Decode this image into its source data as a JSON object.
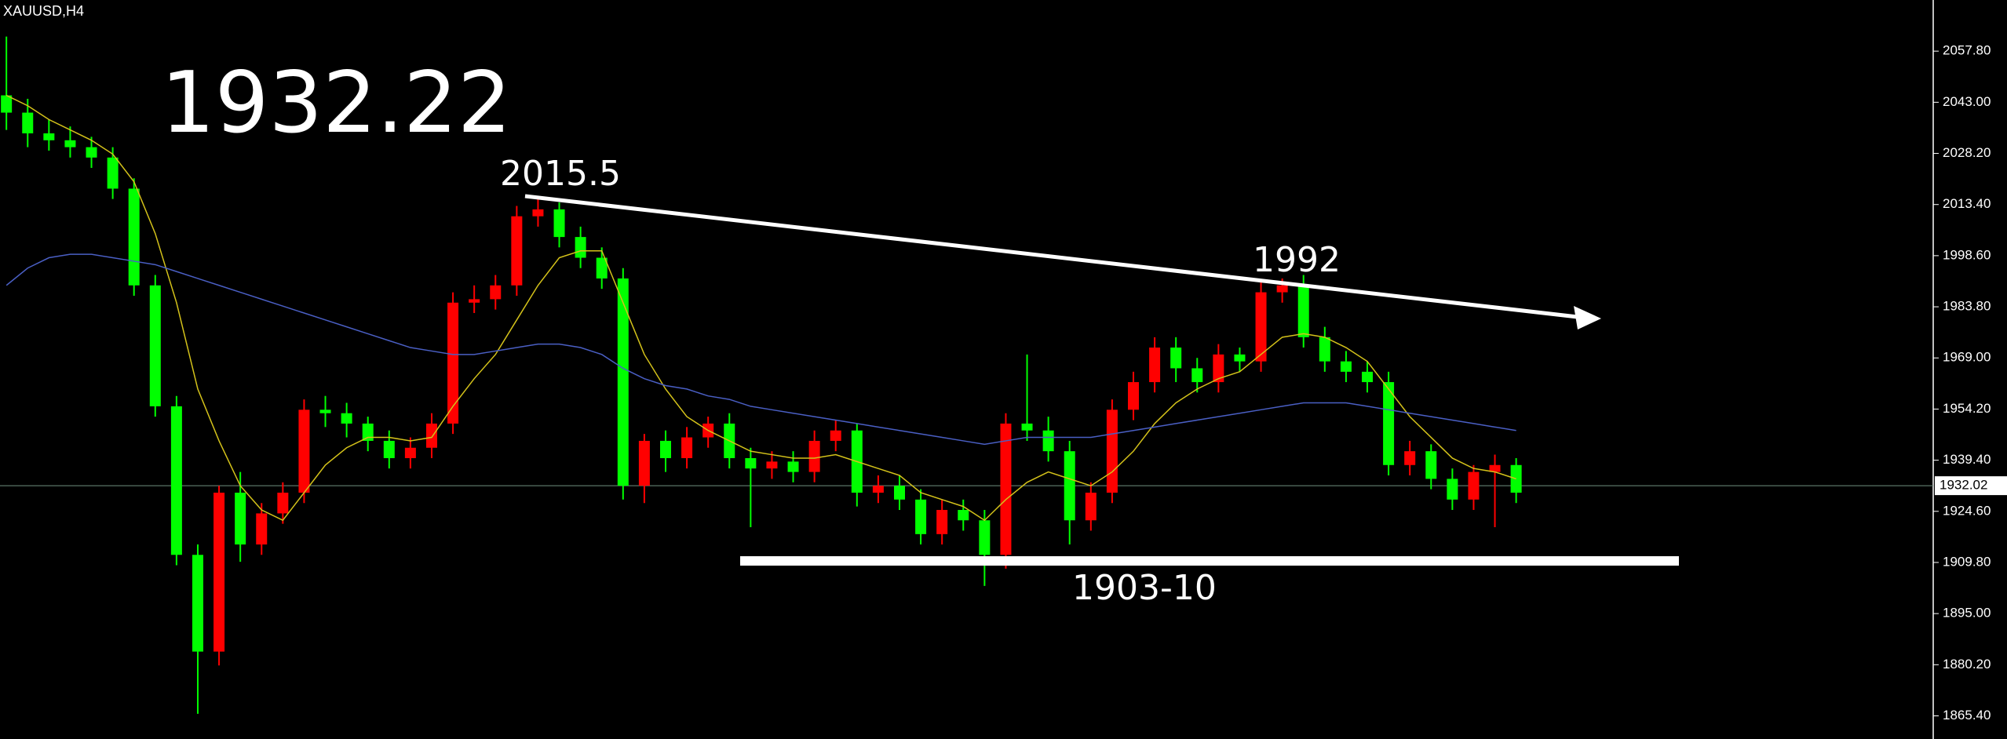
{
  "chart_data": {
    "type": "candlestick",
    "title": "XAUUSD,H4",
    "annotations": [
      "1932.22",
      "2015.5",
      "1992",
      "1903-10"
    ],
    "up_color": "#ff0000",
    "down_color": "#00ff00",
    "ylim": [
      1858.7,
      2072.6
    ],
    "yticks": [
      {
        "value": 2057.8,
        "label": "2057.80"
      },
      {
        "value": 2043,
        "label": "2043.00"
      },
      {
        "value": 2028.2,
        "label": "2028.20"
      },
      {
        "value": 2013.4,
        "label": "2013.40"
      },
      {
        "value": 1998.6,
        "label": "1998.60"
      },
      {
        "value": 1983.8,
        "label": "1983.80"
      },
      {
        "value": 1969,
        "label": "1969.00"
      },
      {
        "value": 1954.2,
        "label": "1954.20"
      },
      {
        "value": 1939.4,
        "label": "1939.40"
      },
      {
        "value": 1924.6,
        "label": "1924.60"
      },
      {
        "value": 1909.8,
        "label": "1909.80"
      },
      {
        "value": 1895,
        "label": "1895.00"
      },
      {
        "value": 1880.2,
        "label": "1880.20"
      },
      {
        "value": 1865.4,
        "label": "1865.40"
      }
    ],
    "last_price": {
      "value": 1932.02,
      "label": "1932.02"
    },
    "open": [
      2045,
      2040,
      2034,
      2032,
      2030,
      2027,
      2018,
      1990,
      1955,
      1912,
      1884,
      1930,
      1915,
      1924,
      1930,
      1954,
      1953,
      1950,
      1945,
      1940,
      1943,
      1950,
      1985,
      1986,
      1990,
      2010,
      2012,
      2004,
      1998,
      1992,
      1932,
      1945,
      1940,
      1946,
      1950,
      1940,
      1937,
      1939,
      1936,
      1945,
      1948,
      1930,
      1932,
      1928,
      1918,
      1925,
      1922,
      1912,
      1950,
      1948,
      1942,
      1922,
      1930,
      1954,
      1962,
      1972,
      1966,
      1962,
      1970,
      1968,
      1988,
      1990,
      1975,
      1968,
      1965,
      1962,
      1938,
      1942,
      1934,
      1928,
      1936,
      1938
    ],
    "high": [
      2062,
      2044,
      2038,
      2036,
      2033,
      2030,
      2021,
      1993,
      1958,
      1915,
      1932,
      1936,
      1927,
      1933,
      1957,
      1958,
      1956,
      1952,
      1948,
      1946,
      1953,
      1988,
      1990,
      1993,
      2013,
      2015.5,
      2014,
      2007,
      2001,
      1995,
      1947,
      1948,
      1949,
      1952,
      1953,
      1943,
      1942,
      1942,
      1948,
      1951,
      1950,
      1935,
      1935,
      1931,
      1928,
      1928,
      1925,
      1953,
      1970,
      1952,
      1945,
      1933,
      1957,
      1965,
      1975,
      1975,
      1969,
      1973,
      1972,
      1991,
      1992,
      1993,
      1978,
      1971,
      1968,
      1965,
      1945,
      1944,
      1937,
      1938,
      1941,
      1940
    ],
    "low": [
      2035,
      2030,
      2029,
      2027,
      2024,
      2015,
      1987,
      1952,
      1909,
      1866,
      1880,
      1910,
      1912,
      1921,
      1927,
      1949,
      1946,
      1942,
      1937,
      1937,
      1940,
      1947,
      1982,
      1983,
      1987,
      2007,
      2001,
      1995,
      1989,
      1928,
      1927,
      1936,
      1937,
      1943,
      1937,
      1920,
      1934,
      1933,
      1933,
      1942,
      1926,
      1927,
      1925,
      1915,
      1915,
      1919,
      1903,
      1908,
      1945,
      1939,
      1915,
      1919,
      1927,
      1951,
      1959,
      1962,
      1959,
      1959,
      1965,
      1965,
      1985,
      1972,
      1965,
      1962,
      1959,
      1935,
      1935,
      1931,
      1925,
      1925,
      1920,
      1927
    ],
    "close": [
      2040,
      2034,
      2032,
      2030,
      2027,
      2018,
      1990,
      1955,
      1912,
      1884,
      1930,
      1915,
      1924,
      1930,
      1954,
      1953,
      1950,
      1945,
      1940,
      1943,
      1950,
      1985,
      1986,
      1990,
      2010,
      2012,
      2004,
      1998,
      1992,
      1932,
      1945,
      1940,
      1946,
      1950,
      1940,
      1937,
      1939,
      1936,
      1945,
      1948,
      1930,
      1932,
      1928,
      1918,
      1925,
      1922,
      1912,
      1950,
      1948,
      1942,
      1922,
      1930,
      1954,
      1962,
      1972,
      1966,
      1962,
      1970,
      1968,
      1988,
      1990,
      1975,
      1968,
      1965,
      1962,
      1938,
      1942,
      1934,
      1928,
      1936,
      1938,
      1930
    ],
    "series": [
      {
        "color": "#d4c21a",
        "values": [
          2045,
          2042,
          2038,
          2035,
          2032,
          2028,
          2020,
          2005,
          1985,
          1960,
          1945,
          1932,
          1925,
          1922,
          1930,
          1938,
          1943,
          1946,
          1946,
          1945,
          1946,
          1955,
          1963,
          1970,
          1980,
          1990,
          1998,
          2000,
          2000,
          1985,
          1970,
          1960,
          1952,
          1948,
          1945,
          1942,
          1941,
          1940,
          1940,
          1941,
          1939,
          1937,
          1935,
          1930,
          1928,
          1926,
          1922,
          1928,
          1933,
          1936,
          1934,
          1932,
          1936,
          1942,
          1950,
          1956,
          1960,
          1963,
          1965,
          1970,
          1975,
          1976,
          1975,
          1972,
          1968,
          1960,
          1952,
          1946,
          1940,
          1937,
          1936,
          1934
        ]
      },
      {
        "color": "#4a5fc4",
        "values": [
          1990,
          1995,
          1998,
          1999,
          1999,
          1998,
          1997,
          1996,
          1994,
          1992,
          1990,
          1988,
          1986,
          1984,
          1982,
          1980,
          1978,
          1976,
          1974,
          1972,
          1971,
          1970,
          1970,
          1971,
          1972,
          1973,
          1973,
          1972,
          1970,
          1966,
          1963,
          1961,
          1960,
          1958,
          1957,
          1955,
          1954,
          1953,
          1952,
          1951,
          1950,
          1949,
          1948,
          1947,
          1946,
          1945,
          1944,
          1945,
          1946,
          1946,
          1946,
          1946,
          1947,
          1948,
          1949,
          1950,
          1951,
          1952,
          1953,
          1954,
          1955,
          1956,
          1956,
          1956,
          1955,
          1954,
          1953,
          1952,
          1951,
          1950,
          1949,
          1948
        ]
      }
    ]
  }
}
